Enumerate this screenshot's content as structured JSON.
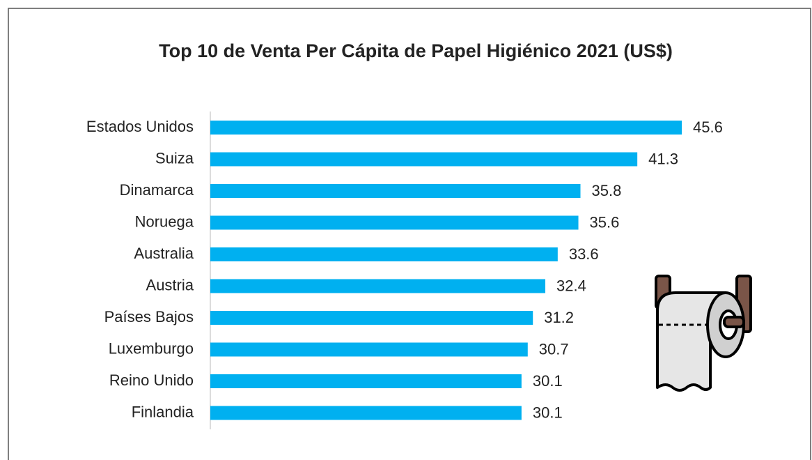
{
  "chart_data": {
    "type": "bar",
    "orientation": "horizontal",
    "title": "Top 10 de Venta Per Cápita de Papel Higiénico 2021 (US$)",
    "categories": [
      "Estados Unidos",
      "Suiza",
      "Dinamarca",
      "Noruega",
      "Australia",
      "Austria",
      "Países Bajos",
      "Luxemburgo",
      "Reino Unido",
      "Finlandia"
    ],
    "values": [
      45.6,
      41.3,
      35.8,
      35.6,
      33.6,
      32.4,
      31.2,
      30.7,
      30.1,
      30.1
    ],
    "color": "#00b0f0"
  }
}
